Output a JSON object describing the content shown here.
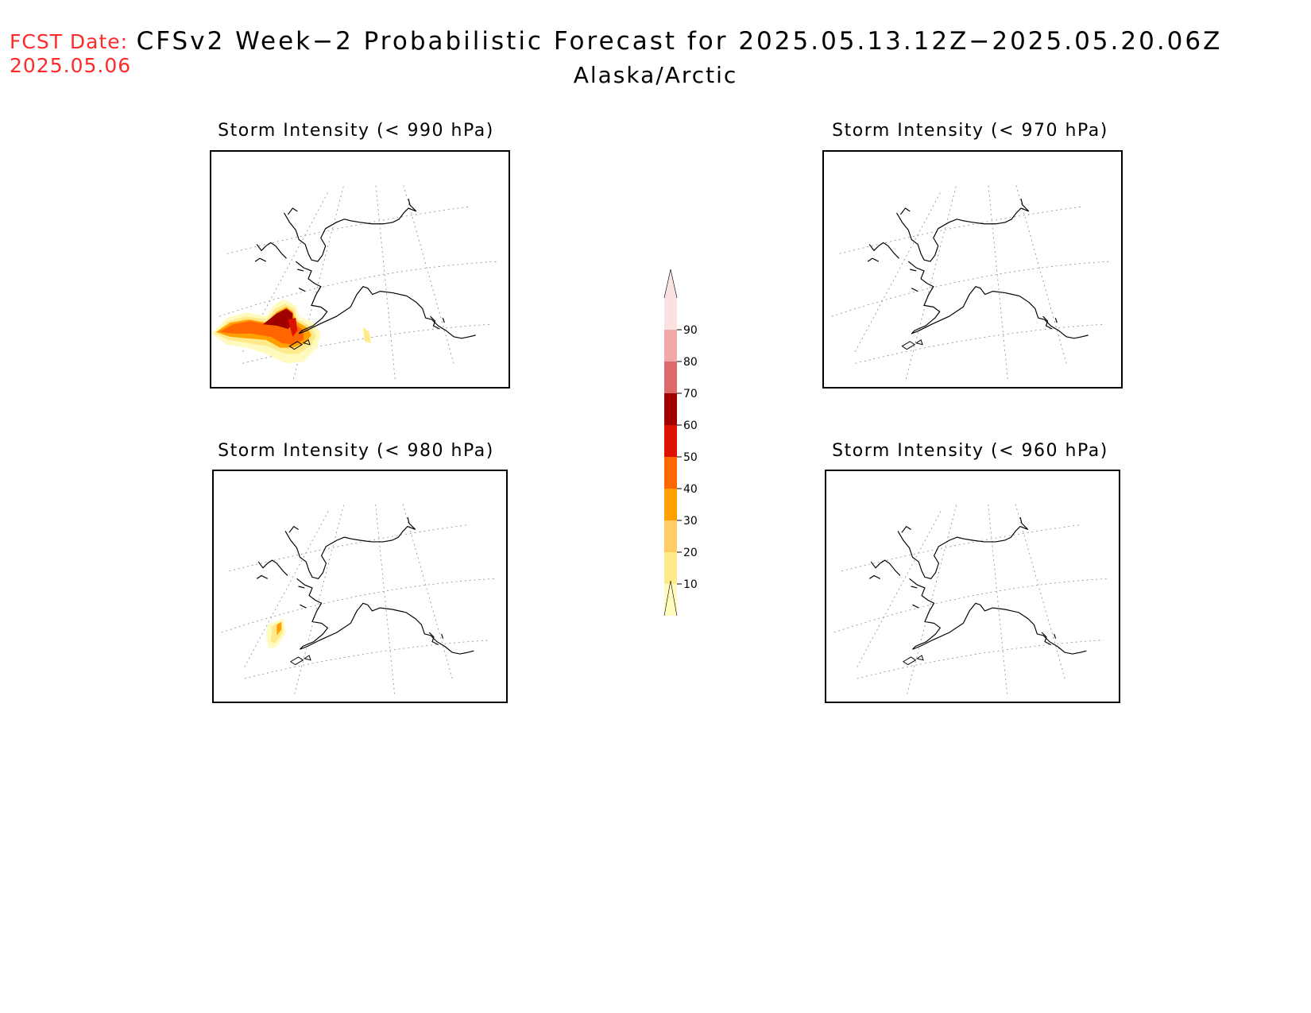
{
  "header": {
    "fcst_date_label": "FCST Date:",
    "fcst_date_value": "2025.05.06",
    "title": "CFSv2 Week−2 Probabilistic Forecast for 2025.05.13.12Z−2025.05.20.06Z",
    "region": "Alaska/Arctic"
  },
  "panels": [
    {
      "title": "Storm Intensity (< 990 hPa)",
      "has_shading": true,
      "shading_peak": 70
    },
    {
      "title": "Storm Intensity (< 970 hPa)",
      "has_shading": false
    },
    {
      "title": "Storm Intensity (< 980 hPa)",
      "has_shading": true,
      "shading_peak": 40
    },
    {
      "title": "Storm Intensity (< 960 hPa)",
      "has_shading": false
    }
  ],
  "colorbar": {
    "levels": [
      "10",
      "20",
      "30",
      "40",
      "50",
      "60",
      "70",
      "80",
      "90"
    ],
    "colors": [
      "#fffbbf",
      "#ffe98a",
      "#ffcc66",
      "#ffa000",
      "#ff6600",
      "#dd1100",
      "#a00000",
      "#dd6a6a",
      "#f1a8a8",
      "#fbe1e1"
    ]
  }
}
